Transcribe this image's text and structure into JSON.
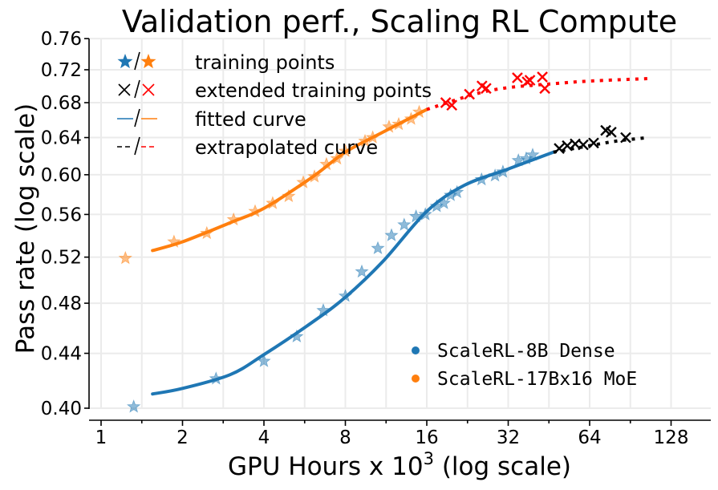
{
  "chart_data": {
    "type": "scatter",
    "title": "Validation perf., Scaling RL Compute",
    "xlabel": "GPU Hours x 10",
    "xlabel_sup": "3",
    "xlabel_suffix": " (log scale)",
    "ylabel": "Pass rate (log scale)",
    "x_scale": "log2",
    "y_scale": "log",
    "xlim": [
      0.9,
      150
    ],
    "ylim": [
      0.4,
      0.76
    ],
    "grid": true,
    "x_ticks": [
      1,
      2,
      4,
      8,
      16,
      32,
      64,
      128
    ],
    "x_tick_labels": [
      "1",
      "2",
      "4",
      "8",
      "16",
      "32",
      "64",
      "128"
    ],
    "y_ticks": [
      0.4,
      0.44,
      0.48,
      0.52,
      0.56,
      0.6,
      0.64,
      0.68,
      0.72,
      0.76
    ],
    "y_tick_labels": [
      "0.40",
      "0.44",
      "0.48",
      "0.52",
      "0.56",
      "0.60",
      "0.64",
      "0.68",
      "0.72",
      "0.76"
    ],
    "marker_legend": {
      "placement": "top-left",
      "entries": [
        {
          "label": "training points",
          "symbol": "star"
        },
        {
          "label": "extended training points",
          "symbol": "x"
        },
        {
          "label": "fitted curve",
          "symbol": "solid"
        },
        {
          "label": "extrapolated curve",
          "symbol": "dashed"
        }
      ]
    },
    "series_legend": {
      "placement": "bottom-right",
      "entries": [
        {
          "label": "ScaleRL-8B Dense",
          "color": "#1f77b4"
        },
        {
          "label": "ScaleRL-17Bx16 MoE",
          "color": "#ff7f0e"
        }
      ]
    },
    "series": [
      {
        "name": "ScaleRL-8B Dense",
        "color": "#1f77b4",
        "extended_color": "#000000",
        "training_points": [
          [
            1.32,
            0.401
          ],
          [
            2.66,
            0.421
          ],
          [
            4.0,
            0.434
          ],
          [
            5.29,
            0.453
          ],
          [
            6.63,
            0.474
          ],
          [
            8.0,
            0.486
          ],
          [
            9.2,
            0.507
          ],
          [
            10.55,
            0.528
          ],
          [
            11.85,
            0.54
          ],
          [
            13.2,
            0.55
          ],
          [
            14.6,
            0.558
          ],
          [
            15.8,
            0.56
          ],
          [
            17.4,
            0.568
          ],
          [
            18.5,
            0.571
          ],
          [
            19.6,
            0.579
          ],
          [
            20.7,
            0.582
          ],
          [
            25.5,
            0.595
          ],
          [
            28.6,
            0.599
          ],
          [
            30.6,
            0.603
          ],
          [
            34.9,
            0.615
          ],
          [
            37.3,
            0.617
          ],
          [
            39.4,
            0.621
          ]
        ],
        "extended_points": [
          [
            49.4,
            0.628
          ],
          [
            52.9,
            0.631
          ],
          [
            56.6,
            0.633
          ],
          [
            60.6,
            0.632
          ],
          [
            66.2,
            0.634
          ],
          [
            73.4,
            0.648
          ],
          [
            76.9,
            0.646
          ],
          [
            87.0,
            0.64
          ]
        ],
        "fitted_curve": [
          [
            1.55,
            0.41
          ],
          [
            2,
            0.414
          ],
          [
            3,
            0.424
          ],
          [
            4,
            0.439
          ],
          [
            6,
            0.464
          ],
          [
            8,
            0.485
          ],
          [
            11,
            0.516
          ],
          [
            16,
            0.563
          ],
          [
            22,
            0.589
          ],
          [
            32,
            0.606
          ],
          [
            47,
            0.624
          ]
        ],
        "extrapolated_curve": [
          [
            47,
            0.624
          ],
          [
            64,
            0.631
          ],
          [
            80,
            0.636
          ],
          [
            105,
            0.64
          ]
        ]
      },
      {
        "name": "ScaleRL-17Bx16 MoE",
        "color": "#ff7f0e",
        "extended_color": "#ff0000",
        "training_points": [
          [
            1.23,
            0.519
          ],
          [
            1.86,
            0.534
          ],
          [
            2.46,
            0.542
          ],
          [
            3.09,
            0.555
          ],
          [
            3.71,
            0.563
          ],
          [
            4.31,
            0.571
          ],
          [
            4.94,
            0.578
          ],
          [
            5.59,
            0.592
          ],
          [
            6.15,
            0.598
          ],
          [
            6.81,
            0.611
          ],
          [
            7.45,
            0.617
          ],
          [
            8.0,
            0.625
          ],
          [
            9.46,
            0.636
          ],
          [
            10.1,
            0.64
          ],
          [
            11.6,
            0.652
          ],
          [
            12.6,
            0.655
          ],
          [
            14.0,
            0.661
          ],
          [
            15.0,
            0.669
          ]
        ],
        "extended_points": [
          [
            18.8,
            0.68
          ],
          [
            19.8,
            0.677
          ],
          [
            23.0,
            0.69
          ],
          [
            25.6,
            0.7
          ],
          [
            26.5,
            0.697
          ],
          [
            34.6,
            0.71
          ],
          [
            37.6,
            0.705
          ],
          [
            38.5,
            0.707
          ],
          [
            42.8,
            0.711
          ],
          [
            43.7,
            0.697
          ]
        ],
        "fitted_curve": [
          [
            1.55,
            0.526
          ],
          [
            2,
            0.534
          ],
          [
            3,
            0.552
          ],
          [
            4,
            0.566
          ],
          [
            6,
            0.597
          ],
          [
            8,
            0.624
          ],
          [
            11,
            0.646
          ],
          [
            16,
            0.672
          ]
        ],
        "extrapolated_curve": [
          [
            16,
            0.672
          ],
          [
            24,
            0.69
          ],
          [
            32,
            0.698
          ],
          [
            48,
            0.703
          ],
          [
            64,
            0.706
          ],
          [
            105,
            0.709
          ]
        ]
      }
    ]
  }
}
